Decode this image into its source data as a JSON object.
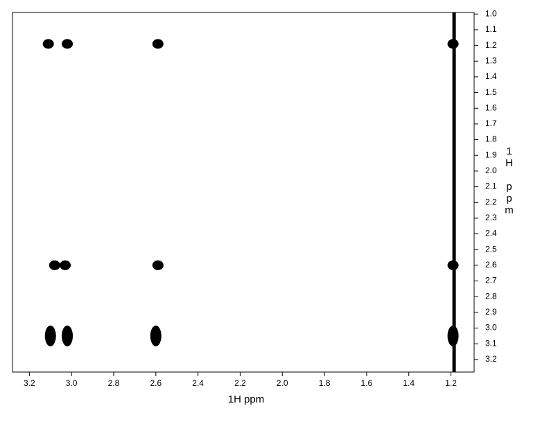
{
  "chart_data": {
    "type": "scatter",
    "xlabel": "1H ppm",
    "ylabel": "1H ppm",
    "xlim": [
      3.28,
      1.09
    ],
    "ylim": [
      0.99,
      3.28
    ],
    "xticks": [
      3.2,
      {
        "value": 3.0,
        "label": "3.0"
      },
      2.8,
      2.6,
      2.4,
      2.2,
      {
        "value": 2.0,
        "label": "2.0"
      },
      1.8,
      1.6,
      1.4,
      1.2
    ],
    "yticks": [
      {
        "value": 1.0,
        "label": "1.0"
      },
      1.1,
      1.2,
      1.3,
      1.4,
      1.5,
      1.6,
      1.7,
      1.8,
      1.9,
      {
        "value": 2.0,
        "label": "2.0"
      },
      2.1,
      2.2,
      2.3,
      2.4,
      2.5,
      2.6,
      2.7,
      2.8,
      2.9,
      {
        "value": 3.0,
        "label": "3.0"
      },
      3.1,
      3.2
    ],
    "color": "#000000",
    "x": [
      3.11,
      3.02,
      2.59,
      1.19,
      3.08,
      3.03,
      2.59,
      1.19,
      3.1,
      3.02,
      2.6,
      1.19
    ],
    "y": [
      1.19,
      1.19,
      1.19,
      1.19,
      2.6,
      2.6,
      2.6,
      2.6,
      3.05,
      3.05,
      3.05,
      3.05
    ],
    "diagonal": {
      "x": [
        1.185,
        1.185
      ],
      "y": [
        0.99,
        3.28
      ]
    }
  }
}
